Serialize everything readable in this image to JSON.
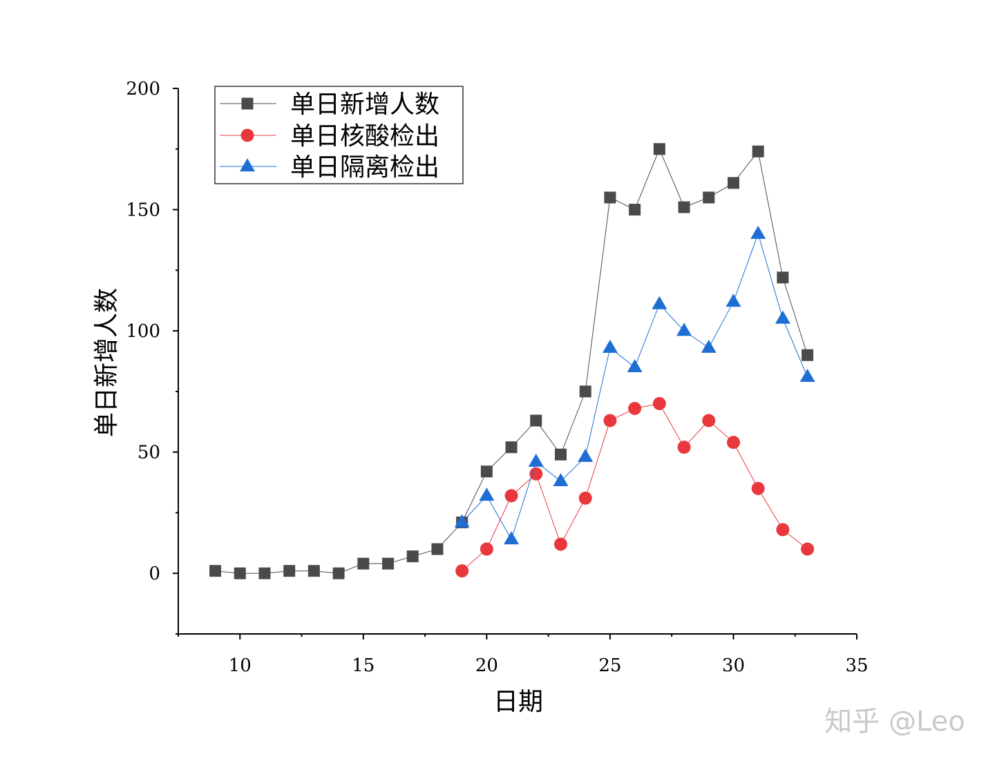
{
  "chart_data": {
    "type": "line",
    "xlabel": "日期",
    "ylabel": "单日新增人数",
    "xlim": [
      7.5,
      35
    ],
    "ylim": [
      -25,
      200
    ],
    "xticks": [
      10,
      15,
      20,
      25,
      30,
      35
    ],
    "yticks": [
      0,
      50,
      100,
      150,
      200
    ],
    "grid": false,
    "legend_position": "top-left",
    "series": [
      {
        "name": "单日新增人数",
        "marker": "square",
        "color": "#4a4a4a",
        "x": [
          9,
          10,
          11,
          12,
          13,
          14,
          15,
          16,
          17,
          18,
          19,
          20,
          21,
          22,
          23,
          24,
          25,
          26,
          27,
          28,
          29,
          30,
          31,
          32,
          33
        ],
        "values": [
          1,
          0,
          0,
          1,
          1,
          0,
          4,
          4,
          7,
          10,
          21,
          42,
          52,
          63,
          49,
          75,
          155,
          150,
          175,
          151,
          155,
          161,
          174,
          122,
          90
        ]
      },
      {
        "name": "单日核酸检出",
        "marker": "circle",
        "color": "#e8383d",
        "x": [
          19,
          20,
          21,
          22,
          23,
          24,
          25,
          26,
          27,
          28,
          29,
          30,
          31,
          32,
          33
        ],
        "values": [
          1,
          10,
          32,
          41,
          12,
          31,
          63,
          68,
          70,
          52,
          63,
          54,
          35,
          18,
          10
        ]
      },
      {
        "name": "单日隔离检出",
        "marker": "triangle",
        "color": "#1f6ed4",
        "x": [
          19,
          20,
          21,
          22,
          23,
          24,
          25,
          26,
          27,
          28,
          29,
          30,
          31,
          32,
          33
        ],
        "values": [
          21,
          32,
          14,
          46,
          38,
          48,
          93,
          85,
          111,
          100,
          93,
          112,
          140,
          105,
          81
        ]
      }
    ]
  },
  "watermark": "知乎 @Leo"
}
